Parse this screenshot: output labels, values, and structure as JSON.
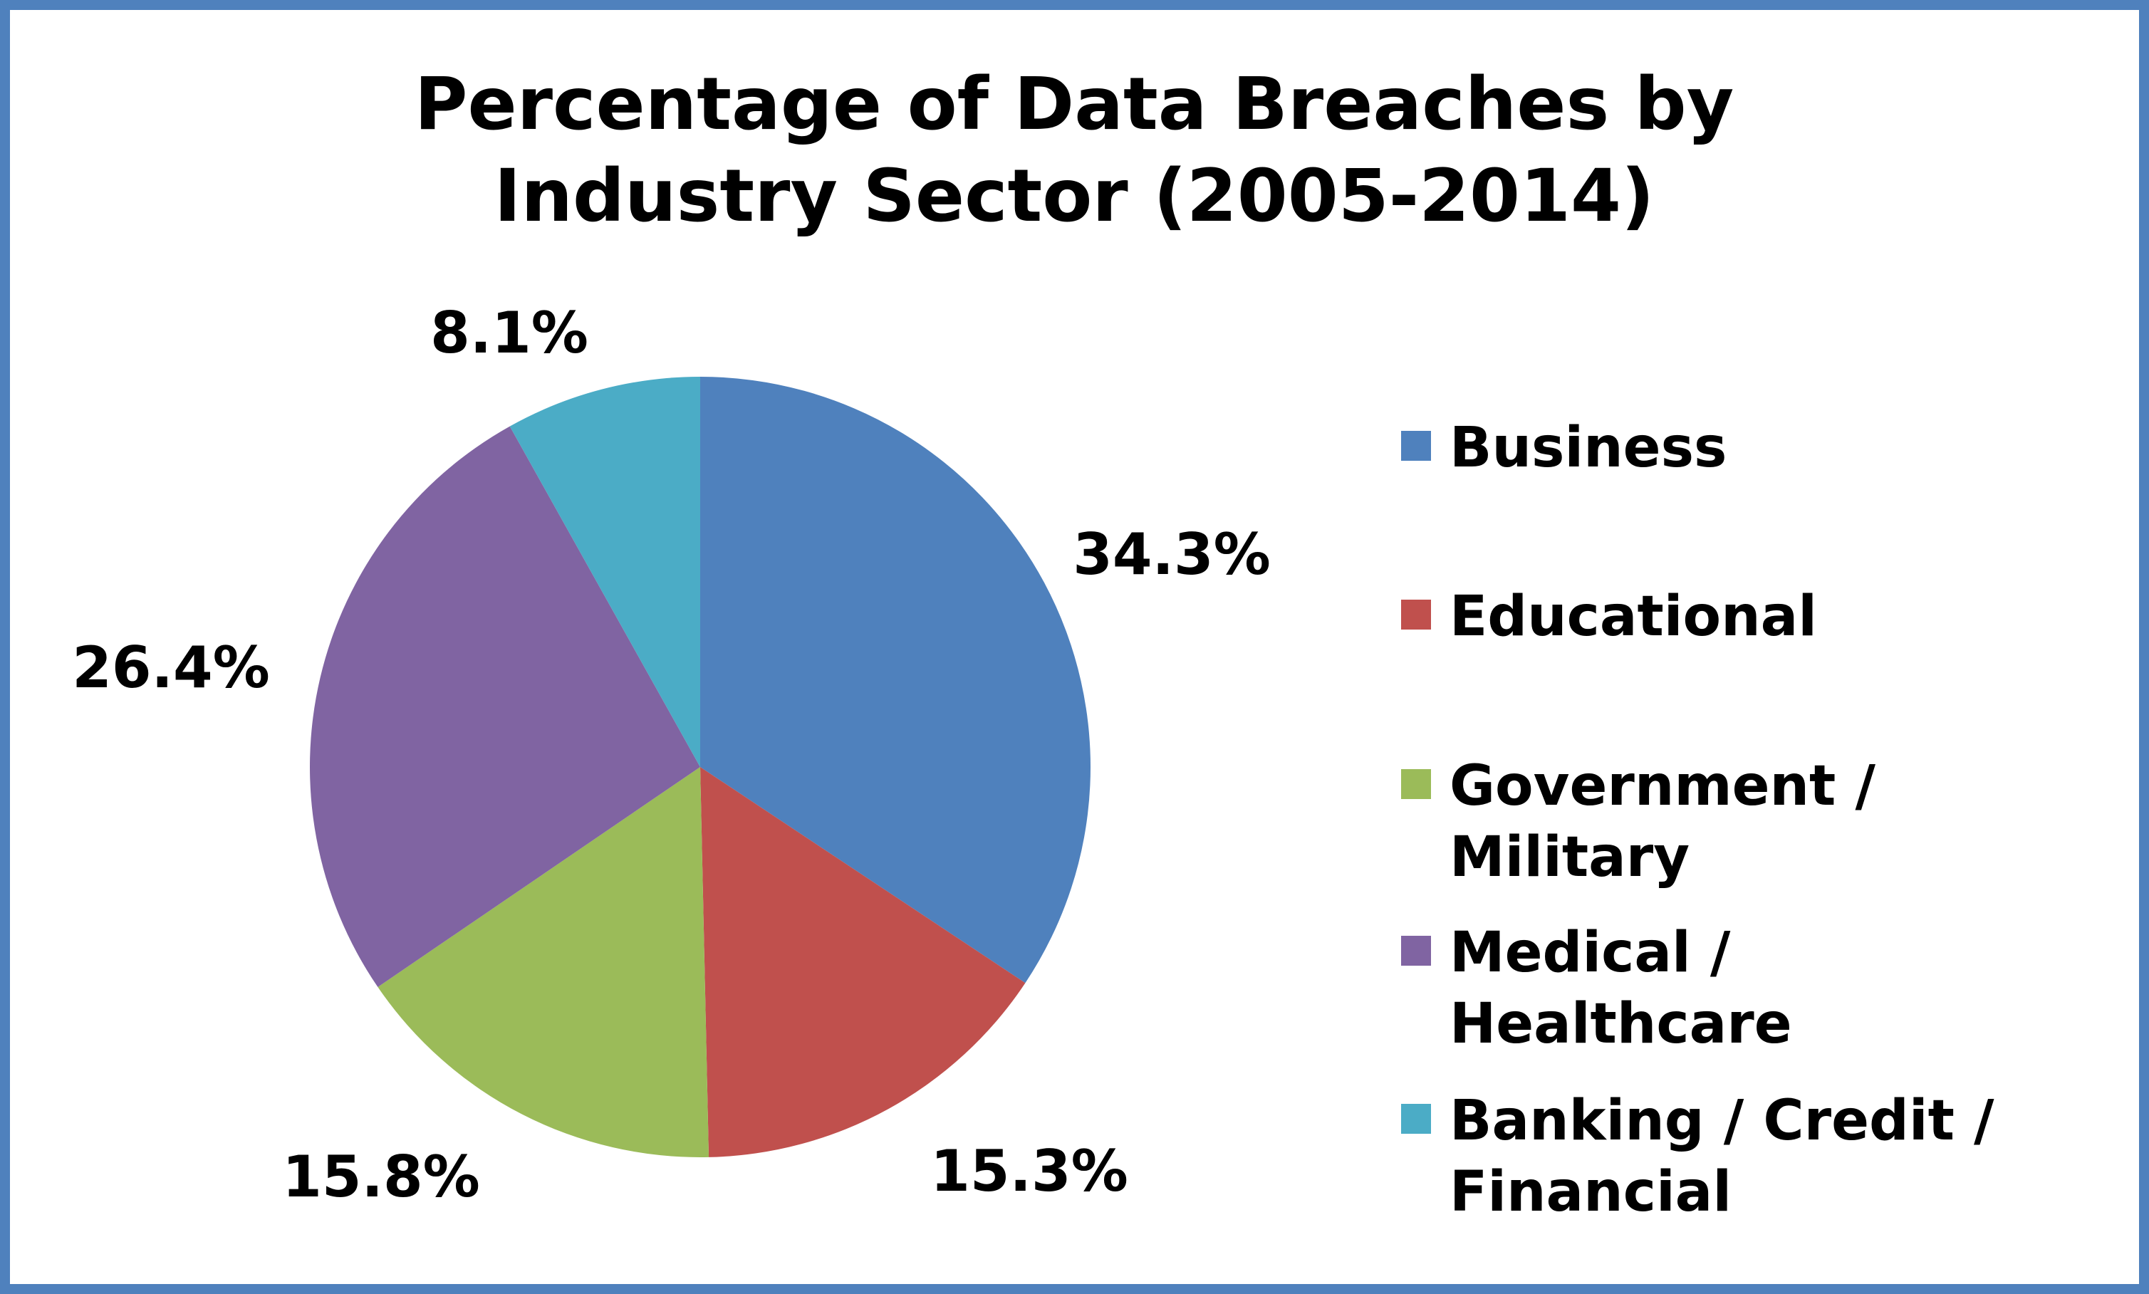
{
  "chart_data": {
    "type": "pie",
    "title_lines": [
      "Percentage of Data Breaches by",
      "Industry Sector (2005-2014)"
    ],
    "categories": [
      "Business",
      "Educational",
      "Government / Military",
      "Medical / Healthcare",
      "Banking / Credit / Financial"
    ],
    "legend_lines": [
      [
        "Business"
      ],
      [
        "Educational"
      ],
      [
        "Government /",
        "Military"
      ],
      [
        "Medical /",
        "Healthcare"
      ],
      [
        "Banking / Credit /",
        "Financial"
      ]
    ],
    "values": [
      34.3,
      15.3,
      15.8,
      26.4,
      8.1
    ],
    "labels": [
      "34.3%",
      "15.3%",
      "15.8%",
      "26.4%",
      "8.1%"
    ],
    "colors": [
      "#4f81bd",
      "#c0504d",
      "#9bbb59",
      "#8064a2",
      "#4bacc6"
    ],
    "start": "12 o'clock",
    "direction": "clockwise",
    "legend_position": "right"
  }
}
